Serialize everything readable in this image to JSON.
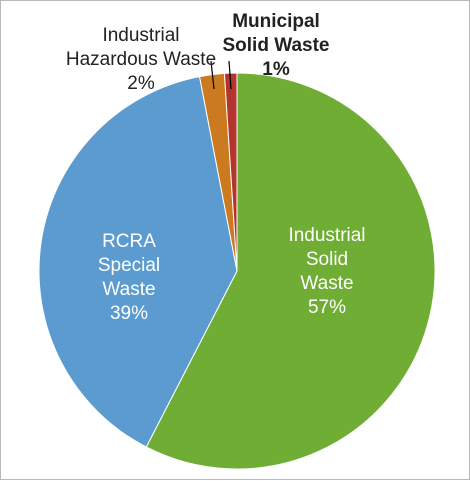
{
  "chart_data": {
    "type": "pie",
    "title": "",
    "start_angle_deg": 0,
    "direction": "clockwise",
    "slices": [
      {
        "name": "Industrial Solid Waste",
        "label_lines": [
          "Industrial",
          "Solid",
          "Waste"
        ],
        "percent_label": "57%",
        "value": 57,
        "color": "#70ad35",
        "label_position": "inside",
        "bold": false
      },
      {
        "name": "RCRA Special Waste",
        "label_lines": [
          "RCRA",
          "Special",
          "Waste"
        ],
        "percent_label": "39%",
        "value": 39,
        "color": "#5b9bd0",
        "label_position": "inside",
        "bold": false
      },
      {
        "name": "Industrial Hazardous Waste",
        "label_lines": [
          "Industrial",
          "Hazardous Waste"
        ],
        "percent_label": "2%",
        "value": 2,
        "color": "#cc7a1f",
        "label_position": "outside",
        "bold": false
      },
      {
        "name": "Municipal Solid Waste",
        "label_lines": [
          "Municipal",
          "Solid Waste"
        ],
        "percent_label": "1%",
        "value": 1,
        "color": "#b2342c",
        "label_position": "outside",
        "bold": true
      }
    ],
    "legend": "none"
  }
}
